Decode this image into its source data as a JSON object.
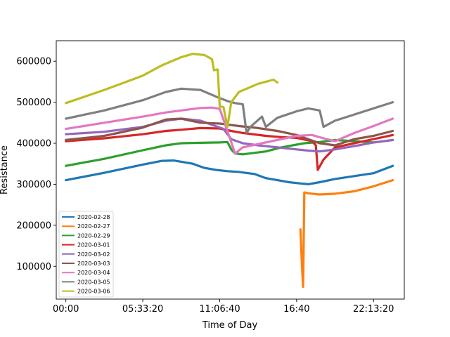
{
  "chart_data": {
    "type": "line",
    "title": "",
    "xlabel": "Time of Day",
    "ylabel": "Resistance",
    "xlim": [
      -2500,
      88000
    ],
    "ylim": [
      20000,
      650000
    ],
    "x_ticks": [
      {
        "value": 0,
        "label": "00:00"
      },
      {
        "value": 20000,
        "label": "05:33:20"
      },
      {
        "value": 40000,
        "label": "11:06:40"
      },
      {
        "value": 60000,
        "label": "16:40"
      },
      {
        "value": 80000,
        "label": "22:13:20"
      }
    ],
    "y_ticks": [
      {
        "value": 100000,
        "label": "100000"
      },
      {
        "value": 200000,
        "label": "200000"
      },
      {
        "value": 300000,
        "label": "300000"
      },
      {
        "value": 400000,
        "label": "400000"
      },
      {
        "value": 500000,
        "label": "500000"
      },
      {
        "value": 600000,
        "label": "600000"
      }
    ],
    "legend_position": "lower-left",
    "grid": false,
    "series": [
      {
        "name": "2020-02-28",
        "color": "#1f77b4",
        "x": [
          0,
          10000,
          20000,
          25000,
          28000,
          33000,
          36000,
          39000,
          42000,
          45000,
          49000,
          52000,
          55000,
          58000,
          61000,
          63000,
          66000,
          70000,
          75000,
          80000,
          85000
        ],
        "y": [
          310000,
          328000,
          348000,
          357000,
          358000,
          350000,
          340000,
          335000,
          332000,
          330000,
          325000,
          315000,
          310000,
          305000,
          302000,
          300000,
          305000,
          313000,
          320000,
          327000,
          345000
        ]
      },
      {
        "name": "2020-02-27",
        "color": "#ff7f0e",
        "x": [
          61000,
          61400,
          61700,
          62000,
          63000,
          66000,
          70000,
          75000,
          80000,
          85000
        ],
        "y": [
          190000,
          100000,
          50000,
          280000,
          278000,
          275000,
          277000,
          283000,
          295000,
          310000
        ]
      },
      {
        "name": "2020-02-29",
        "color": "#2ca02c",
        "x": [
          0,
          10000,
          20000,
          26000,
          30000,
          35000,
          40000,
          42000,
          43000,
          44000,
          46000,
          52000,
          56000,
          62000,
          66000,
          70000,
          75000,
          80000,
          85000
        ],
        "y": [
          345000,
          362000,
          383000,
          395000,
          400000,
          401000,
          402000,
          403000,
          385000,
          375000,
          373000,
          380000,
          390000,
          400000,
          403000,
          408000,
          405000,
          402000,
          408000
        ]
      },
      {
        "name": "2020-03-01",
        "color": "#d62728",
        "x": [
          0,
          10000,
          20000,
          26000,
          30000,
          35000,
          40000,
          43000,
          46000,
          52000,
          56000,
          60000,
          64000,
          65000,
          65500,
          67000,
          70000,
          75000,
          80000,
          85000
        ],
        "y": [
          405000,
          412000,
          422000,
          430000,
          433000,
          437000,
          436000,
          430000,
          425000,
          418000,
          415000,
          413000,
          405000,
          395000,
          335000,
          360000,
          390000,
          400000,
          410000,
          420000
        ]
      },
      {
        "name": "2020-03-02",
        "color": "#9467bd",
        "x": [
          0,
          10000,
          20000,
          26000,
          30000,
          35000,
          38000,
          41000,
          43000,
          46000,
          50000,
          55000,
          60000,
          63000,
          66000,
          70000,
          75000,
          80000,
          85000
        ],
        "y": [
          422000,
          428000,
          440000,
          455000,
          460000,
          455000,
          445000,
          435000,
          410000,
          400000,
          395000,
          390000,
          385000,
          382000,
          380000,
          385000,
          393000,
          402000,
          408000
        ]
      },
      {
        "name": "2020-03-03",
        "color": "#8c564b",
        "x": [
          0,
          10000,
          20000,
          26000,
          30000,
          35000,
          40000,
          45000,
          50000,
          55000,
          60000,
          63000,
          66000,
          70000,
          75000,
          80000,
          85000
        ],
        "y": [
          408000,
          418000,
          438000,
          458000,
          460000,
          450000,
          448000,
          442000,
          437000,
          430000,
          420000,
          410000,
          400000,
          395000,
          410000,
          418000,
          430000
        ]
      },
      {
        "name": "2020-03-04",
        "color": "#e377c2",
        "x": [
          0,
          10000,
          20000,
          26000,
          30000,
          35000,
          38000,
          40000,
          42000,
          44000,
          46000,
          50000,
          56000,
          60000,
          64000,
          67000,
          70000,
          75000,
          80000,
          85000
        ],
        "y": [
          435000,
          450000,
          465000,
          475000,
          480000,
          486000,
          487000,
          484000,
          430000,
          375000,
          390000,
          398000,
          410000,
          418000,
          420000,
          412000,
          405000,
          425000,
          442000,
          460000
        ]
      },
      {
        "name": "2020-03-05",
        "color": "#7f7f7f",
        "x": [
          0,
          10000,
          20000,
          26000,
          30000,
          35000,
          40000,
          42000,
          44000,
          46000,
          47000,
          48000,
          51000,
          52000,
          55000,
          60000,
          63000,
          66000,
          67000,
          70000,
          75000,
          80000,
          85000
        ],
        "y": [
          460000,
          480000,
          505000,
          525000,
          533000,
          530000,
          510000,
          503000,
          498000,
          495000,
          425000,
          440000,
          465000,
          440000,
          462000,
          478000,
          485000,
          480000,
          440000,
          455000,
          470000,
          485000,
          500000
        ]
      },
      {
        "name": "2020-03-06",
        "color": "#bcbd22",
        "x": [
          0,
          10000,
          20000,
          25000,
          30000,
          33000,
          36000,
          38000,
          38500,
          39500,
          40000,
          41000,
          42000,
          43000,
          45000,
          50000,
          52000,
          54000,
          55000
        ],
        "y": [
          498000,
          530000,
          565000,
          590000,
          610000,
          618000,
          615000,
          605000,
          578000,
          580000,
          490000,
          488000,
          440000,
          500000,
          525000,
          545000,
          550000,
          555000,
          548000
        ]
      }
    ]
  }
}
